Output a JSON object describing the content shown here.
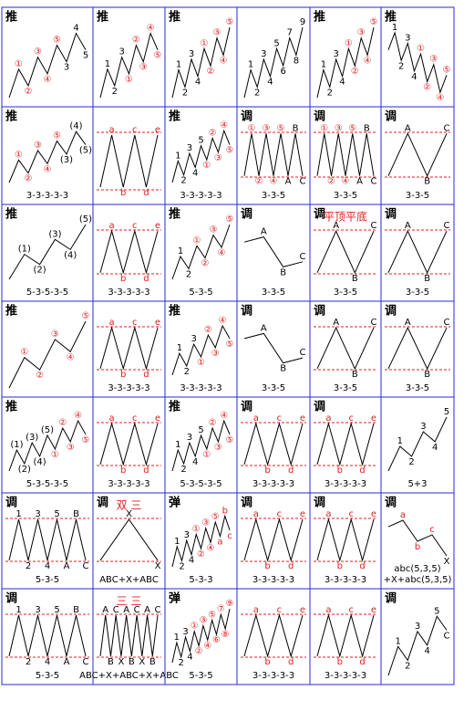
{
  "cells": [
    {
      "tag": "推",
      "labels": [
        "①",
        "②",
        "③",
        "④",
        "⑤",
        "3",
        "4",
        "5"
      ]
    },
    {
      "tag": "推",
      "labels": [
        "1",
        "2",
        "3",
        "①",
        "②",
        "③",
        "④",
        "⑤"
      ]
    },
    {
      "tag": "推",
      "labels": [
        "1",
        "2",
        "3",
        "4",
        "①",
        "②",
        "③",
        "④",
        "⑤"
      ]
    },
    {
      "labels": [
        "1",
        "2",
        "3",
        "4",
        "5",
        "6",
        "7",
        "8",
        "9"
      ]
    },
    {
      "tag": "推",
      "labels": [
        "1",
        "2",
        "3",
        "4",
        "①",
        "②",
        "③",
        "④",
        "⑤"
      ]
    },
    {
      "tag": "推",
      "labels": [
        "1",
        "2",
        "3",
        "4",
        "①",
        "②",
        "③",
        "④",
        "⑤"
      ]
    },
    {
      "tag": "推",
      "labels": [
        "①",
        "②",
        "③",
        "④",
        "⑤",
        "(3)",
        "(4)",
        "(5)"
      ],
      "captions": [
        "3-3-3-3-3"
      ]
    },
    {
      "labels": [
        "a",
        "b",
        "c",
        "d",
        "e"
      ]
    },
    {
      "tag": "推",
      "labels": [
        "1",
        "2",
        "3",
        "4",
        "5",
        "①",
        "②",
        "③",
        "④",
        "⑤"
      ],
      "captions": [
        "3-3-3-3-3"
      ]
    },
    {
      "tag": "调",
      "labels": [
        "①",
        "②",
        "③",
        "④",
        "⑤",
        "A",
        "B",
        "C"
      ],
      "captions": [
        "3-3-5"
      ]
    },
    {
      "tag": "调",
      "labels": [
        "①",
        "②",
        "③",
        "④",
        "⑤",
        "A",
        "B",
        "C"
      ],
      "captions": [
        "3-3-5"
      ]
    },
    {
      "tag": "调",
      "labels": [
        "A",
        "B",
        "C"
      ],
      "captions": [
        "3-3-5"
      ]
    },
    {
      "tag": "推",
      "labels": [
        "(1)",
        "(2)",
        "(3)",
        "(4)",
        "(5)"
      ],
      "captions": [
        "5-3-5-3-5"
      ]
    },
    {
      "labels": [
        "a",
        "b",
        "c",
        "d",
        "e"
      ],
      "captions": [
        "3-3-3-3-3"
      ]
    },
    {
      "tag": "推",
      "labels": [
        "1",
        "2",
        "①",
        "②",
        "③",
        "④",
        "⑤"
      ],
      "captions": [
        "5-3-5"
      ]
    },
    {
      "tag": "调",
      "labels": [
        "A",
        "B",
        "C"
      ],
      "captions": [
        "3-3-5"
      ]
    },
    {
      "tag": "调",
      "note": "平顶平底",
      "labels": [
        "A",
        "B",
        "C"
      ],
      "captions": [
        "3-3-5"
      ]
    },
    {
      "tag": "调",
      "labels": [
        "A",
        "B",
        "C"
      ],
      "captions": [
        "3-3-5"
      ]
    },
    {
      "tag": "推",
      "labels": [
        "①",
        "②",
        "③",
        "④",
        "⑤"
      ]
    },
    {
      "labels": [
        "a",
        "b",
        "c",
        "d",
        "e"
      ],
      "captions": [
        "3-3-3-3-3"
      ]
    },
    {
      "tag": "推",
      "labels": [
        "1",
        "2",
        "3",
        "①",
        "②",
        "③",
        "④",
        "⑤"
      ],
      "captions": [
        "3-3-3-3-3"
      ]
    },
    {
      "tag": "调",
      "labels": [
        "A",
        "B",
        "C"
      ],
      "captions": [
        "3-3-5"
      ]
    },
    {
      "tag": "调",
      "labels": [
        "A",
        "B",
        "C"
      ],
      "captions": [
        "3-3-5"
      ]
    },
    {
      "tag": "调",
      "labels": [
        "A",
        "B",
        "C"
      ],
      "captions": [
        "3-3-5"
      ]
    },
    {
      "tag": "推",
      "labels": [
        "(1)",
        "(2)",
        "(3)",
        "(4)",
        "(5)",
        "①",
        "②",
        "③",
        "④",
        "⑤"
      ],
      "captions": [
        "5-3-5-3-5"
      ]
    },
    {
      "labels": [
        "a",
        "b",
        "c",
        "d",
        "e"
      ],
      "captions": [
        "3-3-3-3-3"
      ]
    },
    {
      "tag": "推",
      "labels": [
        "1",
        "2",
        "3",
        "4",
        "5",
        "①",
        "②",
        "③",
        "④",
        "⑤"
      ],
      "captions": [
        "5-3-5-3-5"
      ]
    },
    {
      "tag": "调",
      "labels": [
        "a",
        "b",
        "c",
        "d",
        "e"
      ],
      "captions": [
        "3-3-3-3-3"
      ]
    },
    {
      "tag": "调",
      "labels": [
        "a",
        "b",
        "c",
        "d",
        "e"
      ],
      "captions": [
        "3-3-3-3-3"
      ]
    },
    {
      "labels": [
        "1",
        "2",
        "3",
        "4",
        "5"
      ],
      "captions": [
        "5+3"
      ]
    },
    {
      "tag": "调",
      "labels": [
        "1",
        "2",
        "3",
        "4",
        "5",
        "A",
        "B",
        "C"
      ],
      "captions": [
        "5-3-5"
      ]
    },
    {
      "tag": "调",
      "note": "双 三",
      "labels": [
        "X",
        "X"
      ],
      "captions": [
        "ABC+X+ABC"
      ]
    },
    {
      "tag": "弹",
      "labels": [
        "1",
        "2",
        "3",
        "4",
        "①",
        "②",
        "③",
        "④",
        "⑤",
        "a",
        "b",
        "c"
      ],
      "captions": [
        "5-3-3"
      ]
    },
    {
      "tag": "调",
      "labels": [
        "a",
        "b",
        "c",
        "d",
        "e"
      ],
      "captions": [
        "3-3-3-3-3"
      ]
    },
    {
      "tag": "调",
      "labels": [
        "a",
        "b",
        "c",
        "d",
        "e"
      ],
      "captions": [
        "3-3-3-3-3"
      ]
    },
    {
      "tag": "调",
      "labels": [
        "a",
        "b",
        "c",
        "X"
      ],
      "captions": [
        "abc(5,3,5)",
        "+X+abc(5,3,5)"
      ]
    },
    {
      "tag": "调",
      "labels": [
        "1",
        "2",
        "3",
        "4",
        "5",
        "A",
        "B",
        "C"
      ],
      "captions": [
        "5-3-5"
      ]
    },
    {
      "note": "三 三",
      "labels": [
        "A",
        "B",
        "C",
        "X",
        "A",
        "B",
        "C",
        "X",
        "A",
        "B",
        "C"
      ],
      "captions": [
        "ABC+X+ABC+X+ABC"
      ]
    },
    {
      "tag": "弹",
      "labels": [
        "1",
        "2",
        "3",
        "4",
        "①",
        "②",
        "③",
        "④",
        "⑤",
        "⑥",
        "⑦",
        "⑧",
        "⑨"
      ],
      "captions": [
        "5-3-5"
      ]
    },
    {
      "labels": [
        "a",
        "b",
        "c",
        "d",
        "e"
      ],
      "captions": [
        "3-3-3-3-3"
      ]
    },
    {
      "labels": [
        "a",
        "b",
        "c",
        "d",
        "e"
      ],
      "captions": [
        "3-3-3-3-3"
      ]
    },
    {
      "tag": "调",
      "labels": [
        "1",
        "2",
        "3",
        "4",
        "5",
        "C"
      ]
    }
  ]
}
